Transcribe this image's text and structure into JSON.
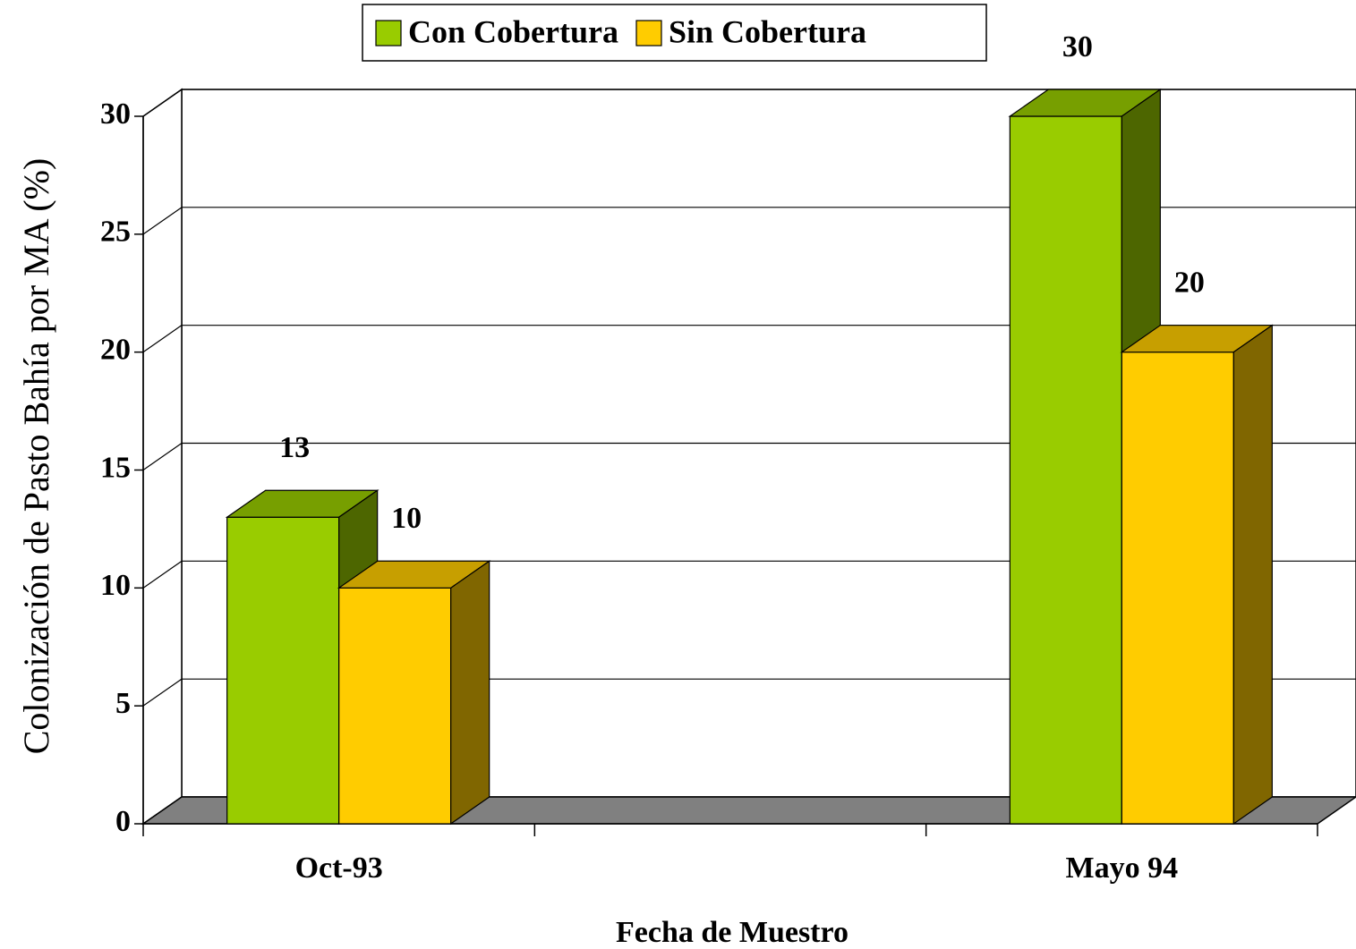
{
  "chart_data": {
    "type": "bar3d",
    "xlabel": "Fecha de Muestro",
    "ylabel": "Colonización de Pasto Bahía por MA (%)",
    "categories": [
      "Oct-93",
      null,
      "Mayo 94"
    ],
    "series": [
      {
        "name": "Con Cobertura",
        "color": "#99cc00",
        "values": [
          13,
          null,
          30
        ]
      },
      {
        "name": "Sin Cobertura",
        "color": "#ffcc00",
        "values": [
          10,
          null,
          20
        ]
      }
    ],
    "ylim": [
      0,
      30
    ],
    "yticks": [
      0,
      5,
      10,
      15,
      20,
      25,
      30
    ],
    "grid": true,
    "legend": "top"
  }
}
